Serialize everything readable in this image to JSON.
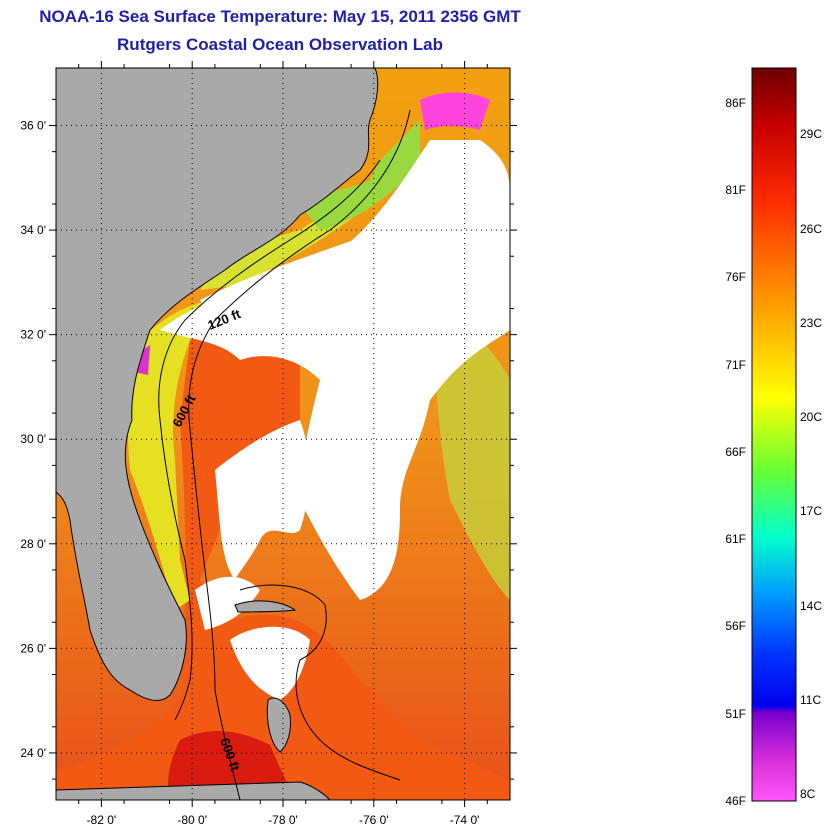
{
  "header": {
    "title": "NOAA-16 Sea Surface Temperature:  May 15, 2011 2356 GMT",
    "subtitle": "Rutgers Coastal Ocean Observation Lab"
  },
  "map": {
    "lat_labels": [
      "36 0'",
      "34 0'",
      "32 0'",
      "30 0'",
      "28 0'",
      "26 0'",
      "24 0'"
    ],
    "lat_values": [
      36,
      34,
      32,
      30,
      28,
      26,
      24
    ],
    "lon_labels": [
      "-82 0'",
      "-80 0'",
      "-78 0'",
      "-76 0'",
      "-74 0'"
    ],
    "lon_values": [
      -82,
      -80,
      -78,
      -76,
      -74
    ],
    "lat_range": [
      23.1,
      37.1
    ],
    "lon_range": [
      -83,
      -73
    ],
    "contour_labels": [
      "120 ft",
      "600 ft",
      "600 ft"
    ],
    "colors": {
      "land": "#a9a9a9",
      "cloud": "#ffffff",
      "coast": "#000000"
    }
  },
  "colorbar": {
    "fahrenheit_labels": [
      "86F",
      "81F",
      "76F",
      "71F",
      "66F",
      "61F",
      "56F",
      "51F",
      "46F"
    ],
    "celsius_labels": [
      "29C",
      "26C",
      "23C",
      "20C",
      "17C",
      "14C",
      "11C",
      "8C"
    ],
    "range_f": [
      46,
      88
    ]
  }
}
